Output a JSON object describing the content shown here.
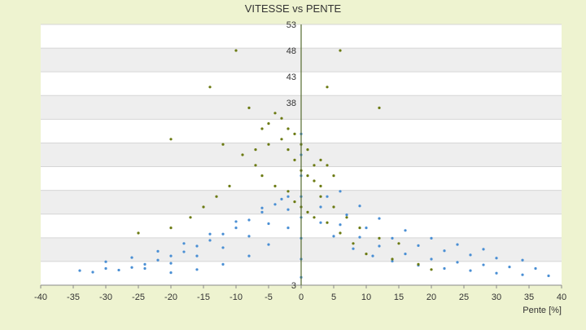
{
  "chart_data": {
    "type": "scatter",
    "title": "VITESSE vs PENTE",
    "xlabel": "Pente [%]",
    "ylabel": "",
    "xlim": [
      -40,
      40
    ],
    "ylim": [
      3,
      53
    ],
    "x_ticks": [
      "-40",
      "-35",
      "-30",
      "-25",
      "-20",
      "-15",
      "-10",
      "-5",
      "0",
      "5",
      "10",
      "15",
      "20",
      "25",
      "30",
      "35",
      "40"
    ],
    "y_ticks": [
      "53",
      "48",
      "43",
      "38",
      "3"
    ],
    "grid": true,
    "legend": "none",
    "series": [
      {
        "color": "#4a8fd4",
        "description_points": [
          [
            -34,
            5.8
          ],
          [
            -32,
            5.5
          ],
          [
            -30,
            6.2
          ],
          [
            -28,
            5.9
          ],
          [
            -26,
            6.4
          ],
          [
            -24,
            7.0
          ],
          [
            -22,
            7.8
          ],
          [
            -20,
            8.6
          ],
          [
            -18,
            9.4
          ],
          [
            -16,
            10.5
          ],
          [
            -14,
            11.6
          ],
          [
            -12,
            12.8
          ],
          [
            -10,
            14.0
          ],
          [
            -8,
            15.5
          ],
          [
            -6,
            17.0
          ],
          [
            -4,
            18.5
          ],
          [
            -2,
            20.0
          ],
          [
            -30,
            7.5
          ],
          [
            -26,
            8.3
          ],
          [
            -22,
            9.5
          ],
          [
            -18,
            11.0
          ],
          [
            -14,
            12.8
          ],
          [
            -10,
            15.2
          ],
          [
            -6,
            17.8
          ],
          [
            -3,
            19.5
          ],
          [
            -24,
            6.2
          ],
          [
            -20,
            7.2
          ],
          [
            -16,
            8.6
          ],
          [
            -12,
            10.2
          ],
          [
            -8,
            12.4
          ],
          [
            -5,
            14.8
          ],
          [
            -2,
            17.5
          ],
          [
            -20,
            5.4
          ],
          [
            -16,
            6.0
          ],
          [
            -12,
            7.0
          ],
          [
            -8,
            8.6
          ],
          [
            -5,
            10.8
          ],
          [
            -2,
            14.0
          ],
          [
            3,
            15.0
          ],
          [
            5,
            12.4
          ],
          [
            8,
            10.0
          ],
          [
            11,
            8.6
          ],
          [
            14,
            7.6
          ],
          [
            18,
            6.8
          ],
          [
            22,
            6.2
          ],
          [
            26,
            5.8
          ],
          [
            30,
            5.3
          ],
          [
            34,
            5.0
          ],
          [
            38,
            4.8
          ],
          [
            3,
            18.0
          ],
          [
            6,
            14.6
          ],
          [
            9,
            12.2
          ],
          [
            12,
            10.5
          ],
          [
            16,
            9.0
          ],
          [
            20,
            8.0
          ],
          [
            24,
            7.4
          ],
          [
            28,
            6.9
          ],
          [
            32,
            6.5
          ],
          [
            36,
            6.2
          ],
          [
            4,
            20.0
          ],
          [
            7,
            16.5
          ],
          [
            10,
            14.0
          ],
          [
            14,
            12.0
          ],
          [
            18,
            10.6
          ],
          [
            22,
            9.6
          ],
          [
            26,
            8.8
          ],
          [
            30,
            8.2
          ],
          [
            34,
            7.8
          ],
          [
            6,
            21.0
          ],
          [
            9,
            18.2
          ],
          [
            12,
            15.8
          ],
          [
            16,
            13.5
          ],
          [
            20,
            12.0
          ],
          [
            24,
            10.8
          ],
          [
            28,
            9.9
          ],
          [
            0,
            4.5
          ],
          [
            0,
            8
          ],
          [
            0,
            12
          ],
          [
            0,
            16
          ],
          [
            0,
            20
          ],
          [
            0,
            24
          ],
          [
            0,
            28
          ],
          [
            0,
            32
          ]
        ]
      },
      {
        "color": "#6b7a12",
        "description_points": [
          [
            -10,
            48
          ],
          [
            -14,
            41
          ],
          [
            -8,
            37
          ],
          [
            -5,
            34
          ],
          [
            -3,
            31
          ],
          [
            -2,
            29
          ],
          [
            -1,
            27
          ],
          [
            0,
            25
          ],
          [
            1,
            24
          ],
          [
            2,
            23
          ],
          [
            3,
            22
          ],
          [
            -12,
            30
          ],
          [
            -9,
            28
          ],
          [
            -7,
            26
          ],
          [
            -6,
            24
          ],
          [
            -4,
            22
          ],
          [
            -2,
            21
          ],
          [
            -1,
            19
          ],
          [
            0,
            18
          ],
          [
            1,
            17
          ],
          [
            2,
            16
          ],
          [
            4,
            15
          ],
          [
            -11,
            22
          ],
          [
            -13,
            20
          ],
          [
            -15,
            18
          ],
          [
            -17,
            16
          ],
          [
            -20,
            14
          ],
          [
            -25,
            13
          ],
          [
            5,
            18
          ],
          [
            7,
            16
          ],
          [
            9,
            14
          ],
          [
            12,
            12
          ],
          [
            15,
            11
          ],
          [
            -4,
            36
          ],
          [
            -3,
            35
          ],
          [
            -2,
            33
          ],
          [
            -1,
            32
          ],
          [
            0,
            30
          ],
          [
            1,
            29
          ],
          [
            -6,
            33
          ],
          [
            -5,
            30
          ],
          [
            -7,
            29
          ],
          [
            3,
            27
          ],
          [
            4,
            26
          ],
          [
            5,
            24
          ],
          [
            -20,
            31
          ],
          [
            4,
            41
          ],
          [
            12,
            37
          ],
          [
            6,
            48
          ],
          [
            10,
            9
          ],
          [
            14,
            8
          ],
          [
            18,
            7
          ],
          [
            20,
            6
          ],
          [
            8,
            11
          ],
          [
            6,
            13
          ],
          [
            3,
            20
          ],
          [
            2,
            26
          ]
        ]
      }
    ]
  }
}
